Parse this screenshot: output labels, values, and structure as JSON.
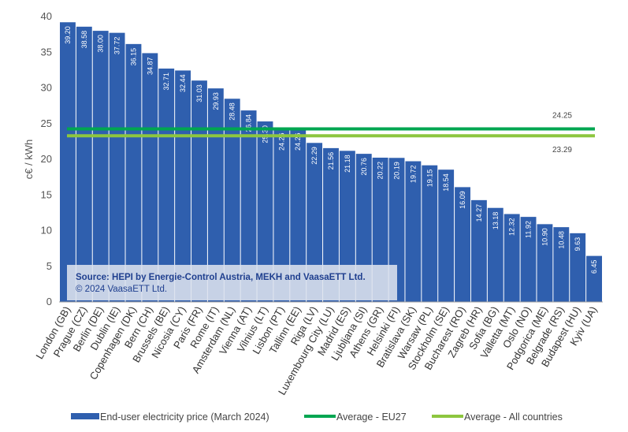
{
  "chart_data": {
    "type": "bar",
    "ylabel": "c€ / kWh",
    "ylim": [
      0,
      40
    ],
    "yticks": [
      0,
      5,
      10,
      15,
      20,
      25,
      30,
      35,
      40
    ],
    "categories": [
      "London (GB)",
      "Prague (CZ)",
      "Berlin (DE)",
      "Dublin (IE)",
      "Copenhagen (DK)",
      "Bern (CH)",
      "Brussels (BE)",
      "Nicosia (CY)",
      "Paris (FR)",
      "Rome (IT)",
      "Amsterdam (NL)",
      "Vienna (AT)",
      "Vilnius (LT)",
      "Lisbon (PT)",
      "Tallinn (EE)",
      "Riga (LV)",
      "Luxembourg City (LU)",
      "Madrid (ES)",
      "Ljubljana (SI)",
      "Athens (GR)",
      "Helsinki (FI)",
      "Bratislava (SK)",
      "Warsaw (PL)",
      "Stockholm (SE)",
      "Bucharest (RO)",
      "Zagreb (HR)",
      "Sofia (BG)",
      "Valletta (MT)",
      "Oslo (NO)",
      "Podgorica (ME)",
      "Belgrade (RS)",
      "Budapest (HU)",
      "Kyiv (UA)"
    ],
    "series": [
      {
        "name": "End-user electricity price (March 2024)",
        "color": "#2f5fae",
        "values": [
          39.2,
          38.58,
          38.0,
          37.72,
          36.15,
          34.87,
          32.71,
          32.44,
          31.03,
          29.93,
          28.48,
          26.84,
          25.3,
          24.26,
          24.26,
          22.29,
          21.56,
          21.18,
          20.76,
          20.22,
          20.19,
          19.72,
          19.15,
          18.54,
          16.09,
          14.27,
          13.18,
          12.32,
          11.92,
          10.9,
          10.48,
          9.63,
          6.45
        ],
        "labels": [
          "39.20",
          "38.58",
          "38.00",
          "37.72",
          "36.15",
          "34.87",
          "32.71",
          "32.44",
          "31.03",
          "29.93",
          "28.48",
          "26.84",
          "25.30",
          "24.26",
          "24.26",
          "22.29",
          "21.56",
          "21.18",
          "20.76",
          "20.22",
          "20.19",
          "19.72",
          "19.15",
          "18.54",
          "16.09",
          "14.27",
          "13.18",
          "12.32",
          "11.92",
          "10.90",
          "10.48",
          "9.63",
          "6.45"
        ]
      }
    ],
    "averages": [
      {
        "name": "Average - EU27",
        "value": 24.25,
        "label": "24.25",
        "color": "#00a651"
      },
      {
        "name": "Average - All countries",
        "value": 23.29,
        "label": "23.29",
        "color": "#8dc63f"
      }
    ],
    "grid": false,
    "legend_position": "bottom"
  },
  "source": {
    "line1": "Source: HEPI by Energie-Control Austria, MEKH and VaasaETT Ltd.",
    "line2": "© 2024 VaasaETT Ltd."
  }
}
